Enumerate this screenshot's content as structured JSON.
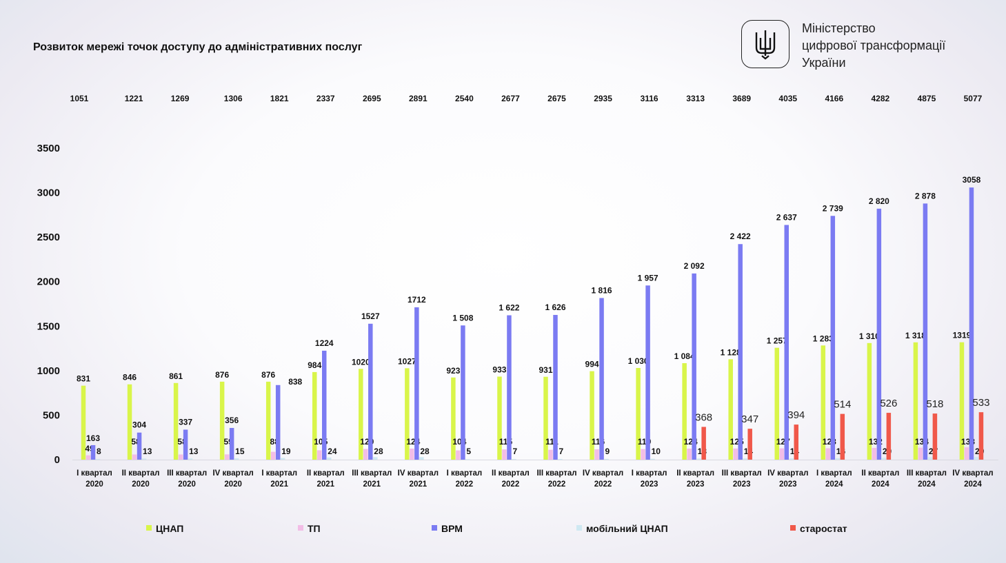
{
  "title": "Розвиток мережі точок доступу до адміністративних послуг",
  "ministry": {
    "line1": "Міністерство",
    "line2": "цифрової трансформації",
    "line3": "України",
    "logo": "trident-icon"
  },
  "chart_data": {
    "type": "bar",
    "title": "Розвиток мережі точок доступу до адміністративних послуг",
    "categories": [
      "I квартал 2020",
      "II квартал 2020",
      "III квартал 2020",
      "IV квартал 2020",
      "I квартал 2021",
      "II квартал 2021",
      "III квартал 2021",
      "IV квартал 2021",
      "I квартал 2022",
      "II квартал 2022",
      "III квартал 2022",
      "IV квартал 2022",
      "I квартал 2023",
      "II квартал 2023",
      "III квартал 2023",
      "IV квартал 2023",
      "I квартал 2024",
      "II квартал 2024",
      "III квартал 2024",
      "IV квартал 2024"
    ],
    "totals": [
      1051,
      1221,
      1269,
      1306,
      1821,
      2337,
      2695,
      2891,
      2540,
      2677,
      2675,
      2935,
      3116,
      3313,
      3689,
      4035,
      4166,
      4282,
      4875,
      5077
    ],
    "series": [
      {
        "name": "ЦНАП",
        "color": "#d9f54a",
        "values": [
          831,
          846,
          861,
          876,
          876,
          984,
          1020,
          1027,
          923,
          933,
          931,
          994,
          1030,
          1084,
          1128,
          1257,
          1283,
          1310,
          1318,
          1319
        ],
        "labels": [
          "831",
          "846",
          "861",
          "876",
          "876",
          "984",
          "1020",
          "1027",
          "923",
          "933",
          "931",
          "994",
          "1 030",
          "1 084",
          "1 128",
          "1 257",
          "1 283",
          "1 310",
          "1 318",
          "1319"
        ]
      },
      {
        "name": "ТП",
        "color": "#f2bde6",
        "values": [
          49,
          58,
          58,
          59,
          88,
          105,
          120,
          124,
          104,
          115,
          111,
          116,
          119,
          124,
          125,
          127,
          128,
          132,
          134,
          138
        ],
        "labels": [
          "49",
          "58",
          "58",
          "59",
          "88",
          "105",
          "120",
          "124",
          "104",
          "115",
          "111",
          "116",
          "119",
          "124",
          "125",
          "127",
          "128",
          "132",
          "134",
          "138"
        ]
      },
      {
        "name": "ВРМ",
        "color": "#7b7bf2",
        "values": [
          163,
          304,
          337,
          356,
          838,
          1224,
          1527,
          1712,
          1508,
          1622,
          1626,
          1816,
          1957,
          2092,
          2422,
          2637,
          2739,
          2820,
          2878,
          3058
        ],
        "labels": [
          "163",
          "304",
          "337",
          "356",
          "838",
          "1224",
          "1527",
          "1712",
          "1 508",
          "1 622",
          "1 626",
          "1 816",
          "1 957",
          "2 092",
          "2 422",
          "2 637",
          "2 739",
          "2 820",
          "2 878",
          "3058"
        ]
      },
      {
        "name": "мобільний ЦНАП",
        "color": "#cfe8f2",
        "values": [
          8,
          13,
          13,
          15,
          19,
          24,
          28,
          28,
          5,
          7,
          7,
          9,
          10,
          13,
          14,
          14,
          16,
          20,
          27,
          29
        ],
        "labels": [
          "8",
          "13",
          "13",
          "15",
          "19",
          "24",
          "28",
          "28",
          "5",
          "7",
          "7",
          "9",
          "10",
          "13",
          "14",
          "14",
          "16",
          "20",
          "27",
          "29"
        ]
      },
      {
        "name": "старостат",
        "color": "#f0584a",
        "values": [
          null,
          null,
          null,
          null,
          null,
          null,
          null,
          null,
          null,
          null,
          null,
          null,
          null,
          368,
          347,
          394,
          514,
          526,
          518,
          533
        ],
        "labels": [
          "",
          "",
          "",
          "",
          "",
          "",
          "",
          "",
          "",
          "",
          "",
          "",
          "",
          "368",
          "347",
          "394",
          "514",
          "526",
          "518",
          "533"
        ]
      }
    ],
    "yticks": [
      0,
      500,
      1000,
      1500,
      2000,
      2500,
      3000,
      3500
    ],
    "ylim": [
      0,
      3500
    ],
    "grid": false,
    "legend": "bottom"
  }
}
